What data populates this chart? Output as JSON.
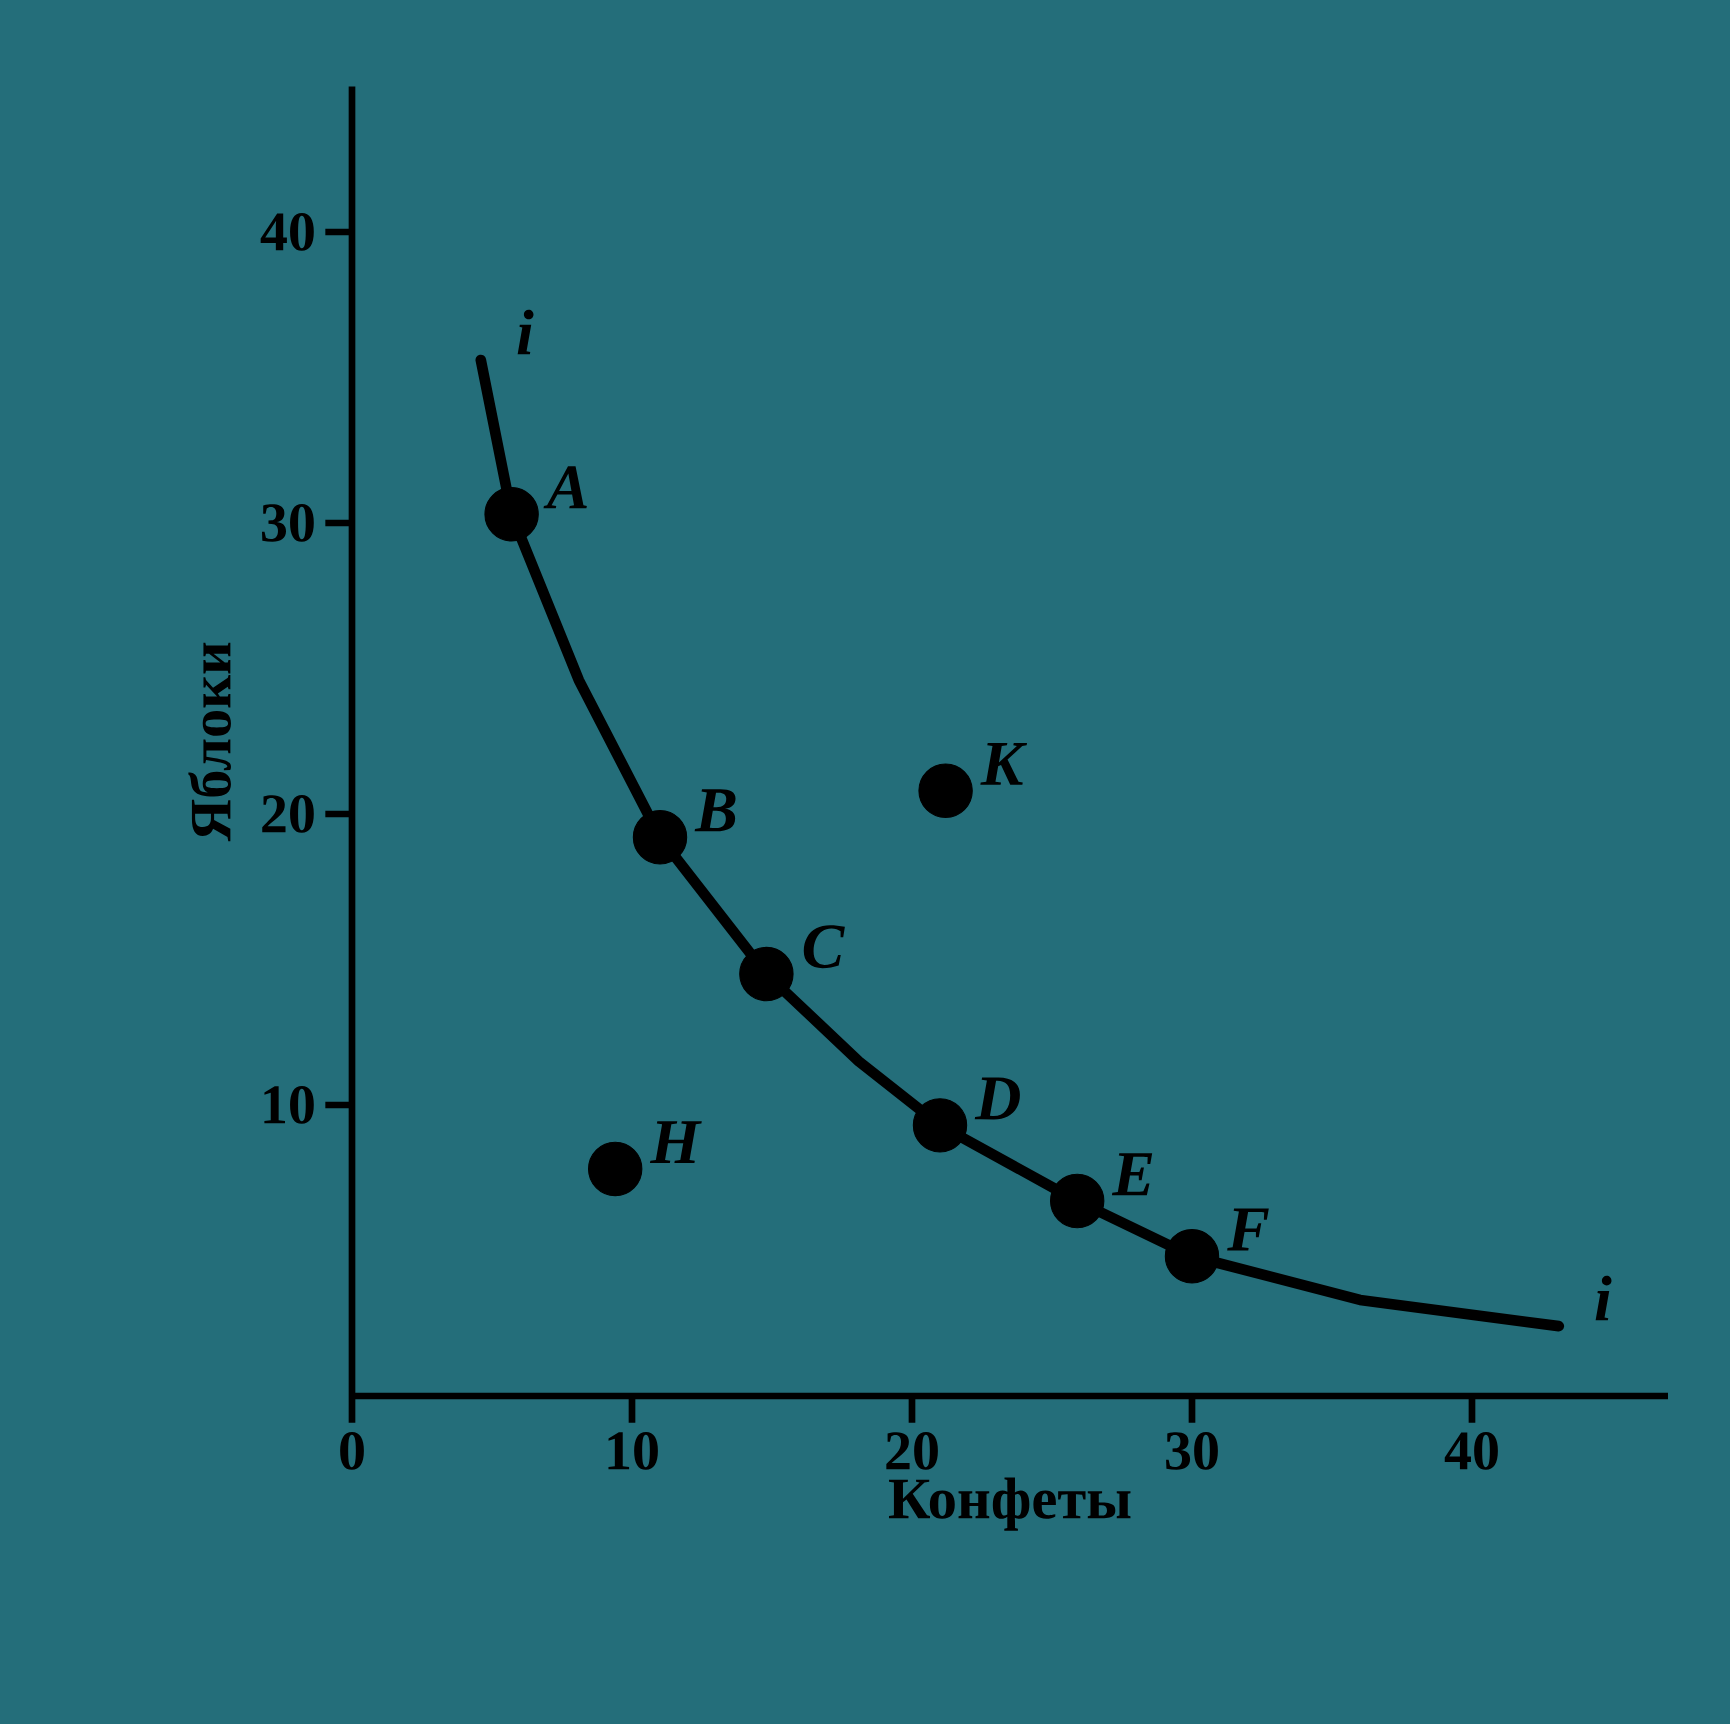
{
  "chart_data": {
    "type": "scatter",
    "xlabel": "Конфеты",
    "ylabel": "Яблоки",
    "xlim": [
      0,
      47
    ],
    "ylim": [
      0,
      45
    ],
    "xticks": [
      0,
      10,
      20,
      30,
      40
    ],
    "yticks": [
      10,
      20,
      30,
      40
    ],
    "grid": false,
    "series": [
      {
        "type": "line",
        "color": "#000000",
        "marker": "none",
        "x": [
          4.6,
          5.7,
          8.1,
          11,
          14.8,
          18.1,
          21,
          25.9,
          30,
          36,
          43.1
        ],
        "values": [
          35.6,
          30.3,
          24.6,
          19.2,
          14.5,
          11.5,
          9.3,
          6.7,
          4.8,
          3.3,
          2.4
        ]
      },
      {
        "color": "#000000",
        "marker": "circle",
        "x": [
          5.7,
          11,
          14.8,
          21,
          25.9,
          30,
          9.4,
          21.2
        ],
        "values": [
          30.3,
          19.2,
          14.5,
          9.3,
          6.7,
          4.8,
          7.8,
          20.8
        ]
      }
    ],
    "annotations": [
      {
        "text": "i",
        "x": 4.6,
        "y": 35.6
      },
      {
        "text": "A",
        "x": 5.7,
        "y": 30.3
      },
      {
        "text": "B",
        "x": 11,
        "y": 19.2
      },
      {
        "text": "C",
        "x": 14.8,
        "y": 14.5
      },
      {
        "text": "D",
        "x": 21,
        "y": 9.3
      },
      {
        "text": "E",
        "x": 25.9,
        "y": 6.7
      },
      {
        "text": "F",
        "x": 30,
        "y": 4.8
      },
      {
        "text": "H",
        "x": 9.4,
        "y": 7.8
      },
      {
        "text": "K",
        "x": 21.2,
        "y": 20.8
      },
      {
        "text": "i",
        "x": 43.1,
        "y": 2.4
      }
    ]
  }
}
